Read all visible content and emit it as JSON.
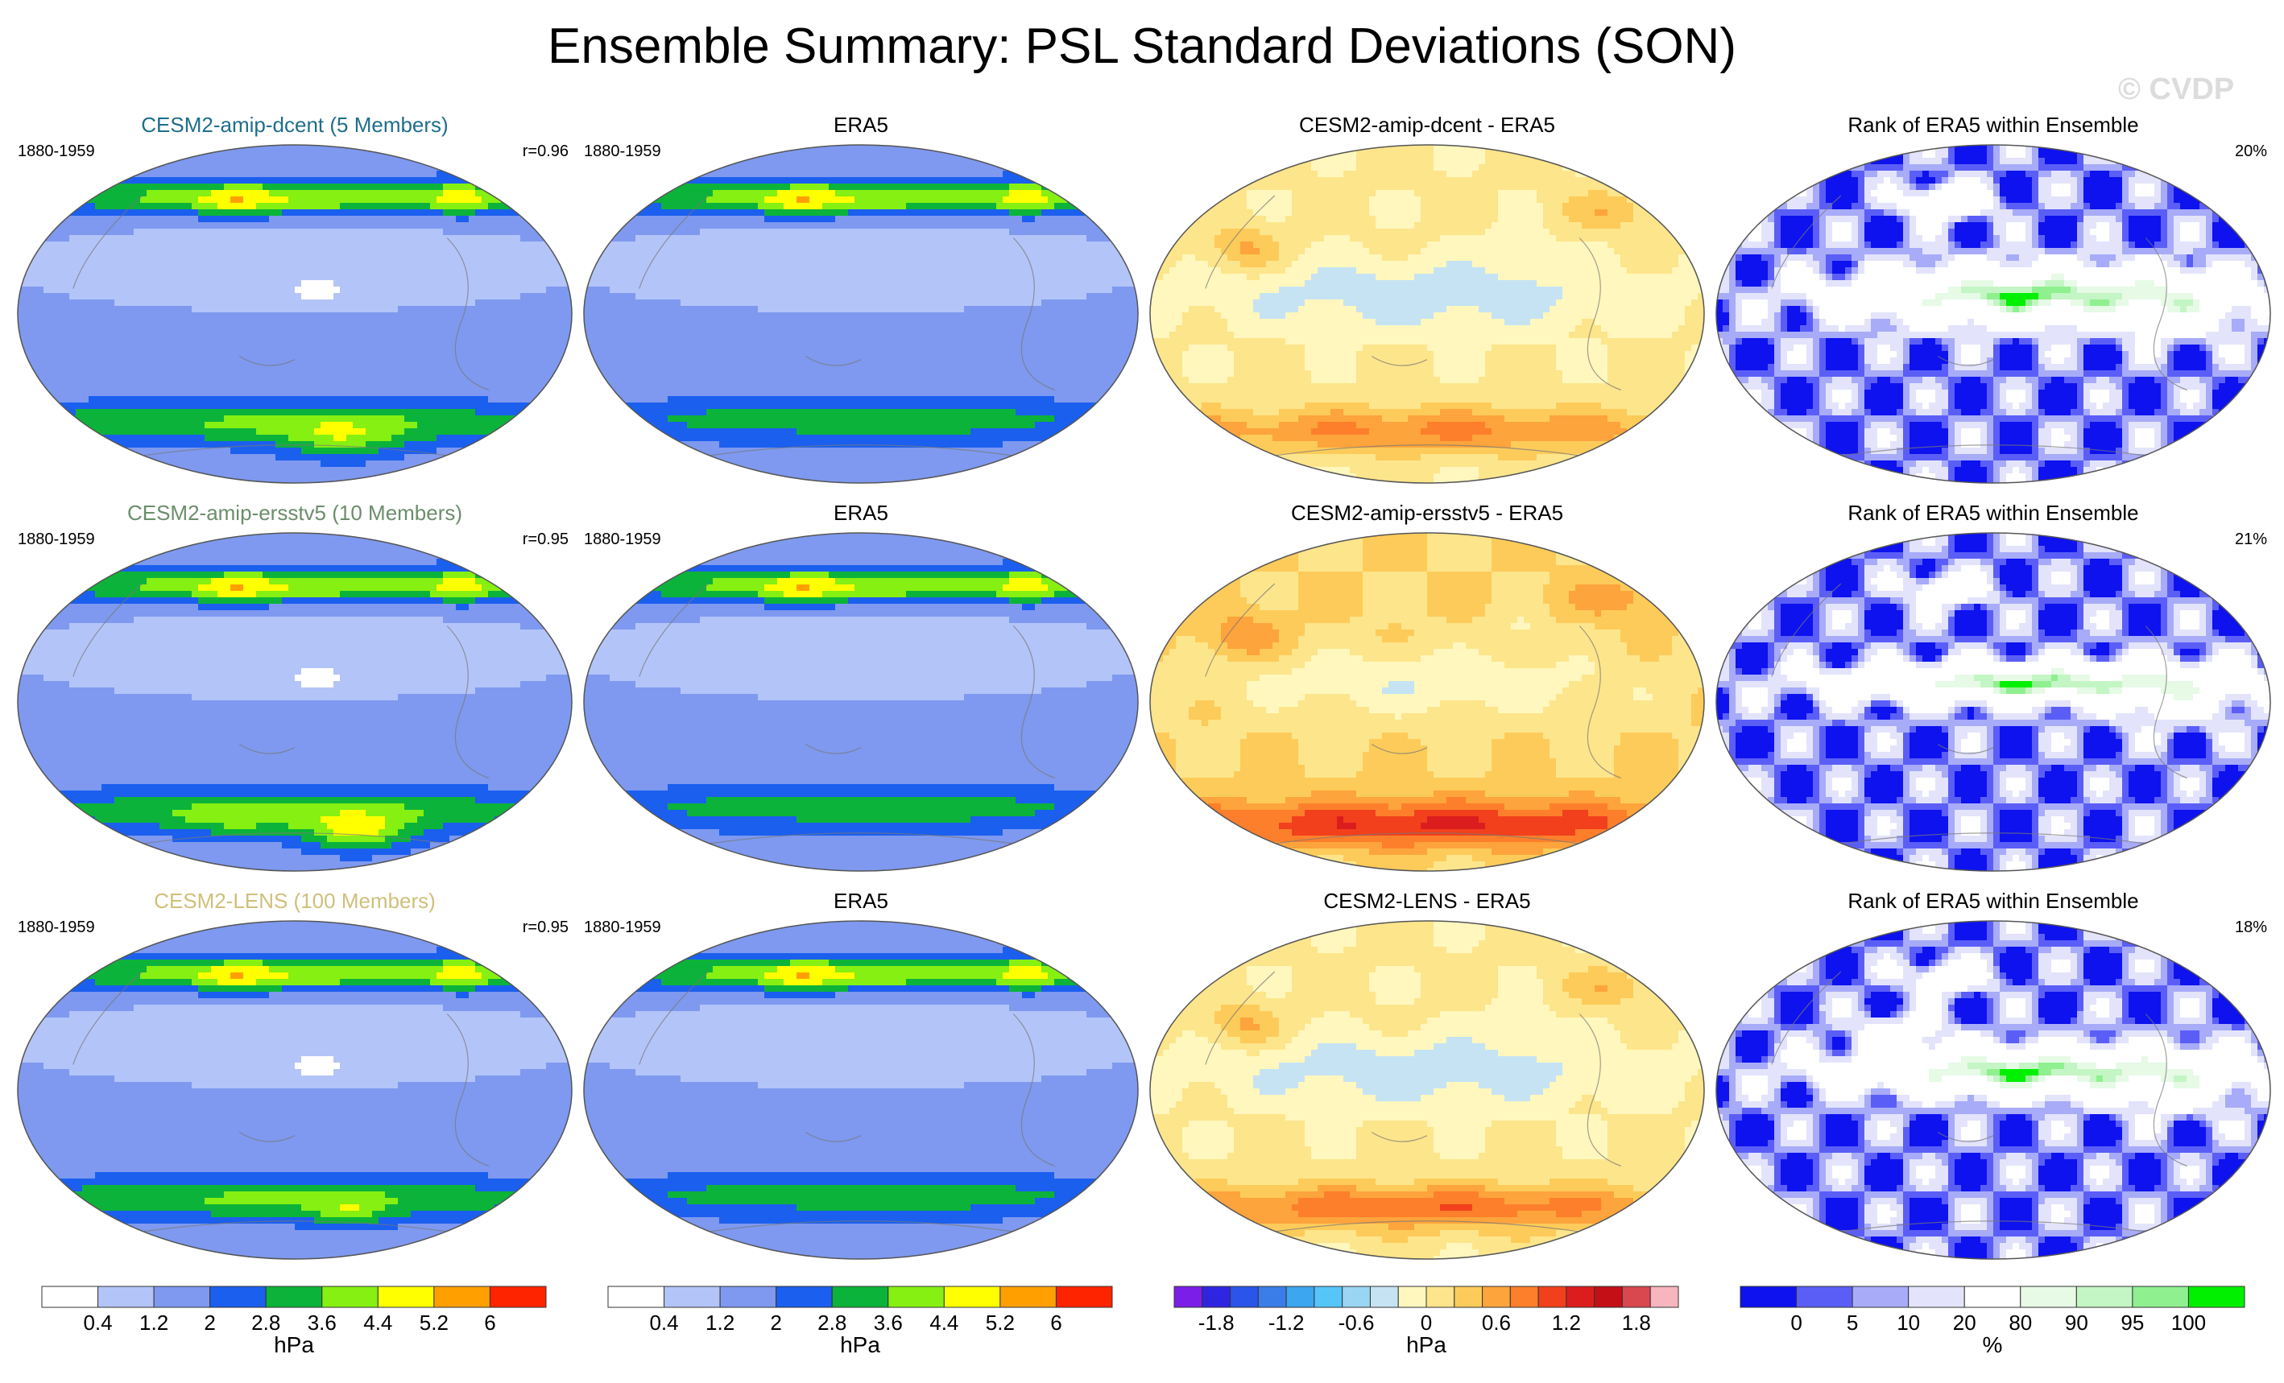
{
  "title": "Ensemble Summary: PSL Standard Deviations (SON)",
  "watermark": "© CVDP",
  "colors": {
    "sd": [
      "#ffffff",
      "#b3c4f8",
      "#7e99ef",
      "#1b5fef",
      "#0cb33a",
      "#86f012",
      "#ffff00",
      "#ff9f00",
      "#ff2400"
    ],
    "diff": [
      "#7b1fe8",
      "#2f25e0",
      "#2b54ea",
      "#3a7de8",
      "#3ca6f0",
      "#56c6f8",
      "#9ad6f4",
      "#c6e3f4",
      "#fff7bd",
      "#fde58b",
      "#fdcb5a",
      "#fda43c",
      "#fd7f2b",
      "#f2401c",
      "#dc1d1d",
      "#c40f17",
      "#d9484f",
      "#f7b5bd"
    ],
    "rank": [
      "#0d12ee",
      "#5b5ef6",
      "#a7abf8",
      "#e3e4fb",
      "#ffffff",
      "#e6fae6",
      "#c4f5c4",
      "#8ff08f",
      "#00f000"
    ]
  },
  "chart_data": [
    {
      "type": "heatmap",
      "title": "CESM2-amip-dcent (5 Members)",
      "title_color": "#1f6e8b",
      "period": "1880-1959",
      "corner": "r=0.96",
      "field": "sd",
      "variant": "dcent"
    },
    {
      "type": "heatmap",
      "title": "ERA5",
      "title_color": "#000000",
      "period": "1880-1959",
      "corner": "",
      "field": "sd",
      "variant": "era"
    },
    {
      "type": "heatmap",
      "title": "CESM2-amip-dcent - ERA5",
      "title_color": "#000000",
      "period": "",
      "corner": "",
      "field": "diff",
      "variant": "dcent"
    },
    {
      "type": "heatmap",
      "title": "Rank of ERA5 within Ensemble",
      "title_color": "#000000",
      "period": "",
      "corner": "20%",
      "field": "rank",
      "variant": "dcent"
    },
    {
      "type": "heatmap",
      "title": "CESM2-amip-ersstv5 (10 Members)",
      "title_color": "#6b8e6b",
      "period": "1880-1959",
      "corner": "r=0.95",
      "field": "sd",
      "variant": "ersst"
    },
    {
      "type": "heatmap",
      "title": "ERA5",
      "title_color": "#000000",
      "period": "1880-1959",
      "corner": "",
      "field": "sd",
      "variant": "era"
    },
    {
      "type": "heatmap",
      "title": "CESM2-amip-ersstv5 - ERA5",
      "title_color": "#000000",
      "period": "",
      "corner": "",
      "field": "diff",
      "variant": "ersst"
    },
    {
      "type": "heatmap",
      "title": "Rank of ERA5 within Ensemble",
      "title_color": "#000000",
      "period": "",
      "corner": "21%",
      "field": "rank",
      "variant": "ersst"
    },
    {
      "type": "heatmap",
      "title": "CESM2-LENS (100 Members)",
      "title_color": "#cfc07a",
      "period": "1880-1959",
      "corner": "r=0.95",
      "field": "sd",
      "variant": "lens"
    },
    {
      "type": "heatmap",
      "title": "ERA5",
      "title_color": "#000000",
      "period": "1880-1959",
      "corner": "",
      "field": "sd",
      "variant": "era"
    },
    {
      "type": "heatmap",
      "title": "CESM2-LENS - ERA5",
      "title_color": "#000000",
      "period": "",
      "corner": "",
      "field": "diff",
      "variant": "lens"
    },
    {
      "type": "heatmap",
      "title": "Rank of ERA5 within Ensemble",
      "title_color": "#000000",
      "period": "",
      "corner": "18%",
      "field": "rank",
      "variant": "lens"
    }
  ],
  "colorbars": [
    {
      "field": "sd",
      "labels": [
        "0.4",
        "1.2",
        "2",
        "2.8",
        "3.6",
        "4.4",
        "5.2",
        "6"
      ],
      "unit": "hPa"
    },
    {
      "field": "sd",
      "labels": [
        "0.4",
        "1.2",
        "2",
        "2.8",
        "3.6",
        "4.4",
        "5.2",
        "6"
      ],
      "unit": "hPa"
    },
    {
      "field": "diff",
      "labels": [
        "-1.8",
        "-1.2",
        "-0.6",
        "0",
        "0.6",
        "1.2",
        "1.8"
      ],
      "unit": "hPa"
    },
    {
      "field": "rank",
      "labels": [
        "0",
        "5",
        "10",
        "20",
        "80",
        "90",
        "95",
        "100"
      ],
      "unit": "%"
    }
  ]
}
